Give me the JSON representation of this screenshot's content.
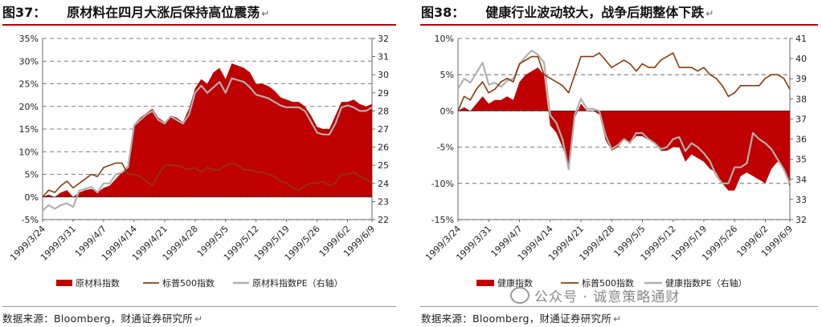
{
  "left": {
    "fig_no": "图37：",
    "title": "原材料在四月大涨后保持高位震荡",
    "mark": "↵",
    "source": "数据来源：Bloomberg，财通证券研究所",
    "source_mark": "↵"
  },
  "right": {
    "fig_no": "图38：",
    "title": "健康行业波动较大，战争后期整体下跌",
    "mark": "↵",
    "source": "数据来源：Bloomberg，财通证券研究所",
    "source_mark": "↵"
  },
  "watermark": "公众号 · 诚意策略通财",
  "colors": {
    "area": "#c00000",
    "line_index": "#8b3d0a",
    "line_pe": "#b0b0b0"
  },
  "chart_data": [
    {
      "type": "area",
      "title": "原材料在四月大涨后保持高位震荡",
      "x": [
        "1999/3/24",
        "1999/3/25",
        "1999/3/26",
        "1999/3/29",
        "1999/3/30",
        "1999/3/31",
        "1999/4/1",
        "1999/4/5",
        "1999/4/6",
        "1999/4/7",
        "1999/4/8",
        "1999/4/9",
        "1999/4/12",
        "1999/4/13",
        "1999/4/14",
        "1999/4/15",
        "1999/4/16",
        "1999/4/19",
        "1999/4/20",
        "1999/4/21",
        "1999/4/22",
        "1999/4/23",
        "1999/4/26",
        "1999/4/27",
        "1999/4/28",
        "1999/4/29",
        "1999/4/30",
        "1999/5/3",
        "1999/5/4",
        "1999/5/5",
        "1999/5/6",
        "1999/5/7",
        "1999/5/10",
        "1999/5/11",
        "1999/5/12",
        "1999/5/13",
        "1999/5/14",
        "1999/5/17",
        "1999/5/18",
        "1999/5/19",
        "1999/5/20",
        "1999/5/21",
        "1999/5/24",
        "1999/5/25",
        "1999/5/26",
        "1999/5/27",
        "1999/5/28",
        "1999/6/1",
        "1999/6/2",
        "1999/6/3",
        "1999/6/4",
        "1999/6/7",
        "1999/6/8",
        "1999/6/9",
        "1999/6/10"
      ],
      "x_tick_labels": [
        "1999/3/24",
        "1999/3/31",
        "1999/4/7",
        "1999/4/14",
        "1999/4/21",
        "1999/4/28",
        "1999/5/5",
        "1999/5/12",
        "1999/5/19",
        "1999/5/26",
        "1999/6/2",
        "1999/6/9"
      ],
      "y_left": {
        "ticks": [
          "-5%",
          "0%",
          "5%",
          "10%",
          "15%",
          "20%",
          "25%",
          "30%",
          "35%"
        ],
        "min": -5,
        "max": 35
      },
      "y_right": {
        "ticks": [
          "22",
          "23",
          "24",
          "25",
          "26",
          "27",
          "28",
          "29",
          "30",
          "31",
          "32"
        ],
        "min": 22,
        "max": 32
      },
      "grid": "horizontal-dashed",
      "legend_position": "bottom",
      "series": [
        {
          "name": "原材料指数",
          "kind": "area",
          "axis": "left",
          "values": [
            0,
            0.5,
            0,
            1,
            1.5,
            0,
            1,
            1.5,
            1.8,
            1,
            2,
            2.5,
            4,
            5.5,
            7,
            16,
            17.5,
            18.5,
            19.5,
            17.5,
            16.5,
            18,
            17.5,
            16.5,
            19.5,
            24,
            26,
            25,
            27.5,
            28.5,
            26,
            29.5,
            29,
            28.5,
            27.5,
            25,
            25,
            24.5,
            23.5,
            22,
            21.5,
            21,
            21,
            20,
            18,
            15.5,
            15,
            15,
            18,
            21,
            21,
            21.5,
            20.5,
            20,
            20.5
          ]
        },
        {
          "name": "标普500指数",
          "kind": "line",
          "axis": "left",
          "values": [
            0,
            1.5,
            1,
            2.5,
            3.5,
            2,
            3,
            4,
            5,
            4.5,
            6.5,
            7,
            7.5,
            7.5,
            5,
            5,
            4.5,
            3.5,
            2.5,
            5,
            7,
            7,
            7,
            6.5,
            6,
            6.5,
            5.5,
            6.5,
            6,
            6,
            7,
            7.5,
            7,
            6,
            6,
            5.5,
            5.5,
            5,
            4.5,
            3.5,
            3,
            2,
            1.5,
            2.5,
            3,
            3,
            3.5,
            2.5,
            3,
            5,
            5,
            5.5,
            4.5,
            4,
            3
          ]
        },
        {
          "name": "原材料指数PE（右轴）",
          "kind": "line",
          "axis": "right",
          "values": [
            22.5,
            22.8,
            22.6,
            22.8,
            22.9,
            22.7,
            23.6,
            23.7,
            23.8,
            23.5,
            24,
            24,
            24.5,
            24.6,
            24.9,
            27.2,
            27.5,
            27.8,
            28,
            27.5,
            27.3,
            27.7,
            27.5,
            27.3,
            27.8,
            29,
            29.4,
            29,
            29.3,
            29.6,
            29,
            29.8,
            29.7,
            29.6,
            29.3,
            28.9,
            28.8,
            28.7,
            28.5,
            28.3,
            28.2,
            28.2,
            28.2,
            28,
            27.4,
            26.8,
            26.7,
            26.7,
            27.3,
            28.2,
            28.3,
            28.2,
            28,
            28,
            28.2
          ]
        }
      ]
    },
    {
      "type": "area",
      "title": "健康行业波动较大，战争后期整体下跌",
      "x": [
        "1999/3/24",
        "1999/3/25",
        "1999/3/26",
        "1999/3/29",
        "1999/3/30",
        "1999/3/31",
        "1999/4/1",
        "1999/4/5",
        "1999/4/6",
        "1999/4/7",
        "1999/4/8",
        "1999/4/9",
        "1999/4/12",
        "1999/4/13",
        "1999/4/14",
        "1999/4/15",
        "1999/4/16",
        "1999/4/19",
        "1999/4/20",
        "1999/4/21",
        "1999/4/22",
        "1999/4/23",
        "1999/4/26",
        "1999/4/27",
        "1999/4/28",
        "1999/4/29",
        "1999/4/30",
        "1999/5/3",
        "1999/5/4",
        "1999/5/5",
        "1999/5/6",
        "1999/5/7",
        "1999/5/10",
        "1999/5/11",
        "1999/5/12",
        "1999/5/13",
        "1999/5/14",
        "1999/5/17",
        "1999/5/18",
        "1999/5/19",
        "1999/5/20",
        "1999/5/21",
        "1999/5/24",
        "1999/5/25",
        "1999/5/26",
        "1999/5/27",
        "1999/5/28",
        "1999/6/1",
        "1999/6/2",
        "1999/6/3",
        "1999/6/4",
        "1999/6/7",
        "1999/6/8",
        "1999/6/9",
        "1999/6/10"
      ],
      "x_tick_labels": [
        "1999/3/24",
        "1999/3/31",
        "1999/4/7",
        "1999/4/14",
        "1999/4/21",
        "1999/4/28",
        "1999/5/5",
        "1999/5/12",
        "1999/5/19",
        "1999/5/26",
        "1999/6/2",
        "1999/6/9"
      ],
      "y_left": {
        "ticks": [
          "-15%",
          "-10%",
          "-5%",
          "0%",
          "5%",
          "10%"
        ],
        "min": -15,
        "max": 10
      },
      "y_right": {
        "ticks": [
          "32",
          "33",
          "34",
          "35",
          "36",
          "37",
          "38",
          "39",
          "40",
          "41"
        ],
        "min": 32,
        "max": 41
      },
      "grid": "horizontal-dashed",
      "legend_position": "bottom",
      "series": [
        {
          "name": "健康指数",
          "kind": "area",
          "axis": "left",
          "values": [
            0,
            0.5,
            0,
            1,
            2,
            1,
            1.5,
            1.5,
            2,
            1.5,
            4,
            5,
            5.5,
            6,
            5,
            -2,
            -3,
            -5,
            -7.5,
            -1,
            1,
            0,
            0,
            -0.5,
            -4,
            -5.5,
            -5,
            -4,
            -4.5,
            -3.5,
            -3.5,
            -4,
            -4.5,
            -5.5,
            -5.5,
            -5,
            -5,
            -7,
            -6,
            -6.5,
            -7,
            -8,
            -8.5,
            -10,
            -11,
            -11,
            -9,
            -8.5,
            -9,
            -9.5,
            -10,
            -8,
            -7,
            -8,
            -10.5
          ]
        },
        {
          "name": "标普500指数",
          "kind": "line",
          "axis": "left",
          "values": [
            0,
            2,
            1.5,
            3,
            4,
            2.5,
            3,
            4,
            4.5,
            4,
            6.5,
            7,
            7.5,
            7.5,
            5,
            4.5,
            4,
            3.5,
            2.5,
            5,
            7.5,
            7.5,
            7.5,
            8,
            7,
            6,
            6.5,
            7,
            6.5,
            5.5,
            6.5,
            6,
            6,
            7,
            7.5,
            8,
            6,
            6,
            6,
            5.5,
            6,
            5,
            4.5,
            3.5,
            2,
            2.5,
            3.5,
            3.5,
            3.5,
            3.5,
            4.5,
            5,
            5,
            4.5,
            3
          ]
        },
        {
          "name": "健康指数PE（右轴）",
          "kind": "line",
          "axis": "right",
          "values": [
            38.5,
            39,
            38.8,
            39.3,
            39.8,
            38.7,
            38.8,
            38.6,
            38.9,
            39,
            39.7,
            40.1,
            40.4,
            40.2,
            39.8,
            37.2,
            36.8,
            36,
            34.5,
            37.2,
            38,
            37.5,
            37.5,
            37.4,
            36.2,
            35.5,
            35.7,
            36,
            35.8,
            36.3,
            36.3,
            36,
            35.8,
            35.5,
            35.6,
            36,
            36.1,
            35.4,
            35.8,
            35.6,
            35.3,
            34.9,
            34.2,
            33.8,
            33.8,
            34.6,
            34.6,
            34.8,
            36.3,
            36,
            35.8,
            35.5,
            35,
            34.5,
            33.8
          ]
        }
      ]
    }
  ]
}
